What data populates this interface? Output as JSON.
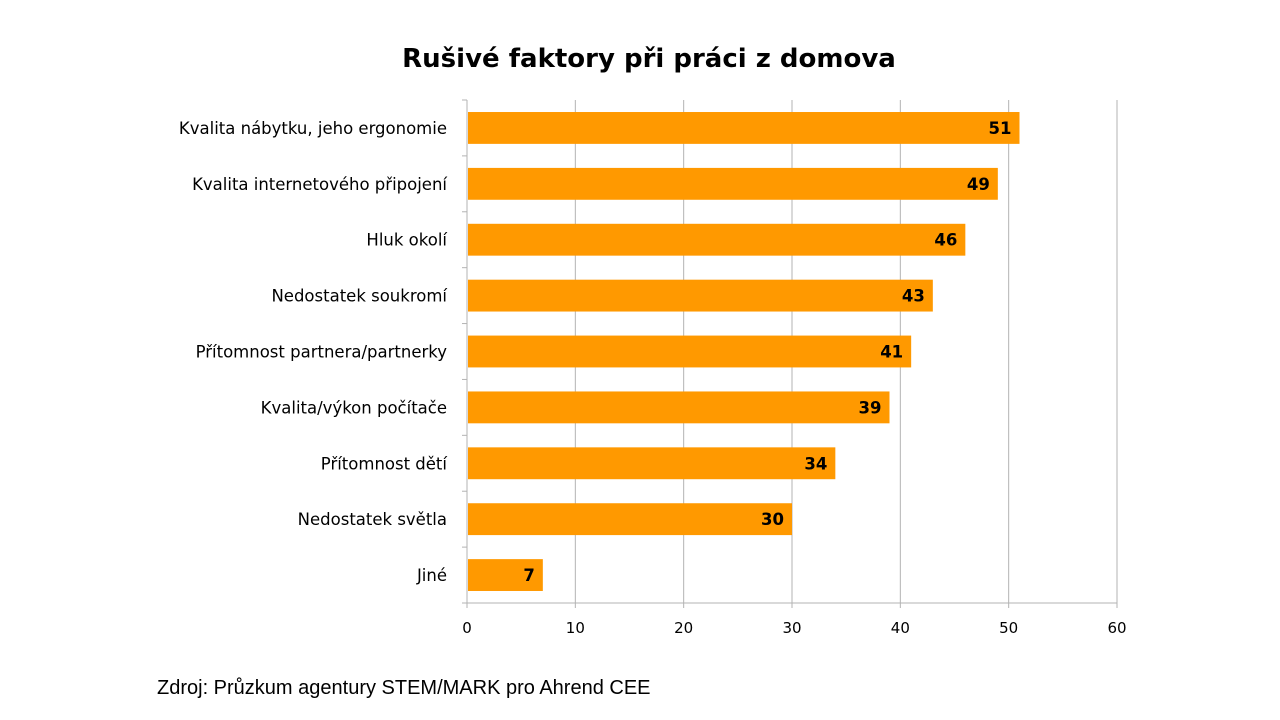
{
  "chart_data": {
    "type": "bar",
    "orientation": "horizontal",
    "title": "Rušivé faktory při práci z domova",
    "categories": [
      "Kvalita nábytku, jeho ergonomie",
      "Kvalita internetového připojení",
      "Hluk okolí",
      "Nedostatek soukromí",
      "Přítomnost partnera/partnerky",
      "Kvalita/výkon počítače",
      "Přítomnost dětí",
      "Nedostatek světla",
      "Jiné"
    ],
    "values": [
      51,
      49,
      46,
      43,
      41,
      39,
      34,
      30,
      7
    ],
    "data_labels": [
      "51",
      "49",
      "46",
      "43",
      "41",
      "39",
      "34",
      "30",
      "7"
    ],
    "xlim": [
      0,
      60
    ],
    "xticks": [
      0,
      10,
      20,
      30,
      40,
      50,
      60
    ],
    "xlabel": "",
    "ylabel": "",
    "grid": "vertical",
    "legend": "none",
    "bar_color": "#FF9900",
    "grid_color": "#B3B3B3"
  },
  "footer": {
    "source": "Zdroj: Průzkum agentury STEM/MARK pro Ahrend CEE"
  }
}
